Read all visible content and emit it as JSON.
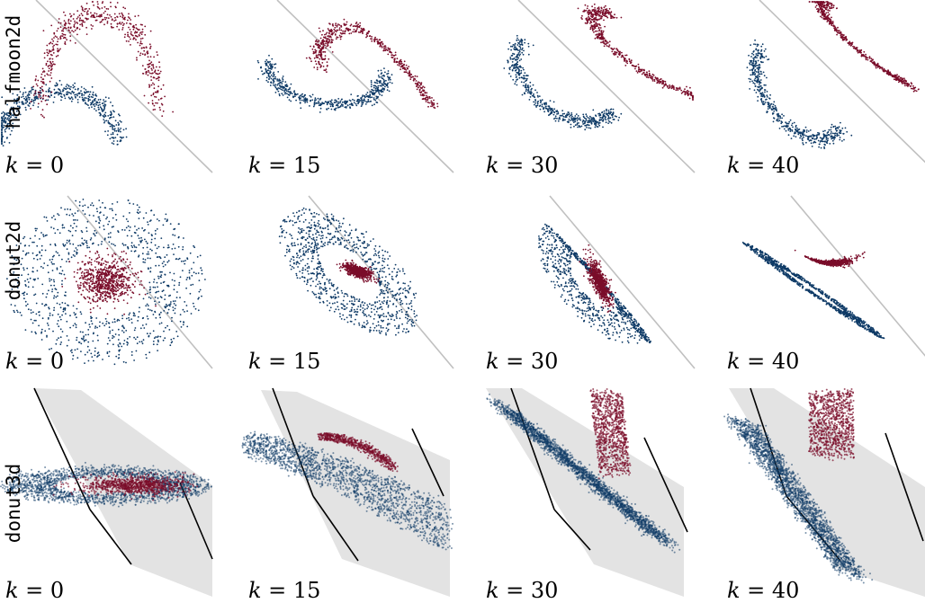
{
  "figure": {
    "rows": [
      {
        "dataset": "halfmoon2d",
        "kind": "2d-halfmoon"
      },
      {
        "dataset": "donut2d",
        "kind": "2d-donut"
      },
      {
        "dataset": "donut3d",
        "kind": "3d-donut"
      }
    ],
    "k_label_prefix": "k = ",
    "k_values": [
      0,
      15,
      30,
      40
    ],
    "colors": {
      "class_a": "#0e3a66",
      "class_b": "#7a0d2a",
      "decision_line": "#c0c0c0",
      "boundary_plane": "#e3e3e3",
      "plane_edge": "#000000"
    }
  },
  "chart_data": {
    "type": "scatter",
    "layout": "grid-3x4",
    "rows": [
      "halfmoon2d",
      "donut2d",
      "donut3d"
    ],
    "columns_k": [
      0,
      15,
      30,
      40
    ],
    "series": [
      {
        "class": "inner/upper class",
        "color": "#7a0d2a"
      },
      {
        "class": "outer/lower class",
        "color": "#0e3a66"
      }
    ],
    "grid": false
  }
}
